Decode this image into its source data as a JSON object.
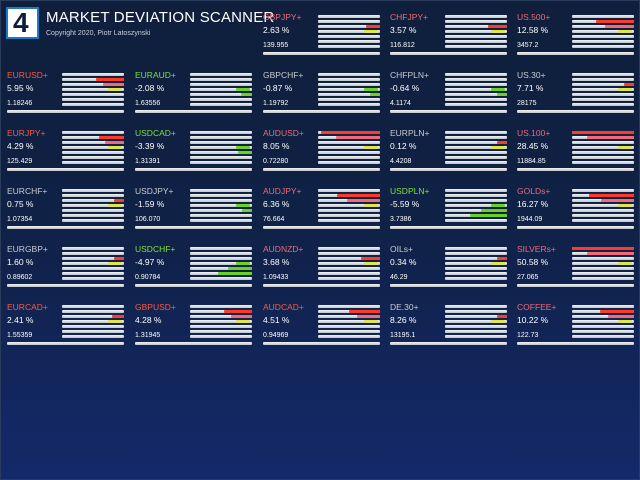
{
  "header": {
    "logo_text": "4",
    "title": "MARKET DEVIATION SCANNER",
    "copyright": "Copyright 2020, Piotr Latoszynski"
  },
  "colors": {
    "up": "#ff3a26",
    "up_text": "#ff5a3c",
    "up_pale": "#f06a78",
    "down": "#6bd21f",
    "down_text": "#7fe038",
    "neutral": "#c8ccd2",
    "accent": "#e0e64a"
  },
  "instruments": [
    {
      "symbol": "GBPJPY+",
      "pct": "2.63 %",
      "price": "139.955",
      "tone": "up_pale",
      "deviation": 0.22
    },
    {
      "symbol": "CHFJPY+",
      "pct": "3.57 %",
      "price": "116.812",
      "tone": "up_pale",
      "deviation": 0.3
    },
    {
      "symbol": "US.500+",
      "pct": "12.58 %",
      "price": "3457.2",
      "tone": "up_pale",
      "deviation": 0.62
    },
    {
      "symbol": "EURUSD+",
      "pct": "5.95 %",
      "price": "1.18246",
      "tone": "up",
      "deviation": 0.45
    },
    {
      "symbol": "EURAUD+",
      "pct": "-2.08 %",
      "price": "1.63556",
      "tone": "down",
      "deviation": -0.25
    },
    {
      "symbol": "GBPCHF+",
      "pct": "-0.87 %",
      "price": "1.19792",
      "tone": "neutral",
      "deviation": -0.06
    },
    {
      "symbol": "CHFPLN+",
      "pct": "-0.64 %",
      "price": "4.1174",
      "tone": "neutral",
      "deviation": -0.04
    },
    {
      "symbol": "US.30+",
      "pct": "7.71 %",
      "price": "28175",
      "tone": "neutral",
      "deviation": 0.15
    },
    {
      "symbol": "EURJPY+",
      "pct": "4.29 %",
      "price": "125.429",
      "tone": "up",
      "deviation": 0.4
    },
    {
      "symbol": "USDCAD+",
      "pct": "-3.39 %",
      "price": "1.31391",
      "tone": "down",
      "deviation": -0.32
    },
    {
      "symbol": "AUDUSD+",
      "pct": "8.05 %",
      "price": "0.72280",
      "tone": "up_pale",
      "deviation": 0.95
    },
    {
      "symbol": "EURPLN+",
      "pct": "0.12 %",
      "price": "4.4208",
      "tone": "neutral",
      "deviation": 0.01
    },
    {
      "symbol": "US.100+",
      "pct": "28.45 %",
      "price": "11884.85",
      "tone": "up_pale",
      "deviation": 1.0
    },
    {
      "symbol": "EURCHF+",
      "pct": "0.75 %",
      "price": "1.07354",
      "tone": "neutral",
      "deviation": 0.05
    },
    {
      "symbol": "USDJPY+",
      "pct": "-1.59 %",
      "price": "106.070",
      "tone": "neutral",
      "deviation": -0.1
    },
    {
      "symbol": "AUDJPY+",
      "pct": "6.36 %",
      "price": "76.664",
      "tone": "up_pale",
      "deviation": 0.7
    },
    {
      "symbol": "USDPLN+",
      "pct": "-5.59 %",
      "price": "3.7386",
      "tone": "down",
      "deviation": -0.6
    },
    {
      "symbol": "GOLDs+",
      "pct": "16.27 %",
      "price": "1944.09",
      "tone": "up_pale",
      "deviation": 0.72
    },
    {
      "symbol": "EURGBP+",
      "pct": "1.60 %",
      "price": "0.89602",
      "tone": "neutral",
      "deviation": 0.1
    },
    {
      "symbol": "USDCHF+",
      "pct": "-4.97 %",
      "price": "0.90784",
      "tone": "down",
      "deviation": -0.55
    },
    {
      "symbol": "AUDNZD+",
      "pct": "3.68 %",
      "price": "1.09433",
      "tone": "up_pale",
      "deviation": 0.3
    },
    {
      "symbol": "OILs+",
      "pct": "0.34 %",
      "price": "46.29",
      "tone": "neutral",
      "deviation": 0.02
    },
    {
      "symbol": "SILVERs+",
      "pct": "50.58 %",
      "price": "27.065",
      "tone": "up_pale",
      "deviation": 1.0
    },
    {
      "symbol": "EURCAD+",
      "pct": "2.41 %",
      "price": "1.55359",
      "tone": "up",
      "deviation": 0.2
    },
    {
      "symbol": "GBPUSD+",
      "pct": "4.28 %",
      "price": "1.31945",
      "tone": "up",
      "deviation": 0.45
    },
    {
      "symbol": "AUDCAD+",
      "pct": "4.51 %",
      "price": "0.94969",
      "tone": "up",
      "deviation": 0.5
    },
    {
      "symbol": "DE.30+",
      "pct": "8.26 %",
      "price": "13195.1",
      "tone": "neutral",
      "deviation": 0.16
    },
    {
      "symbol": "COFFEE+",
      "pct": "10.22 %",
      "price": "122.73",
      "tone": "up_pale",
      "deviation": 0.55
    }
  ]
}
